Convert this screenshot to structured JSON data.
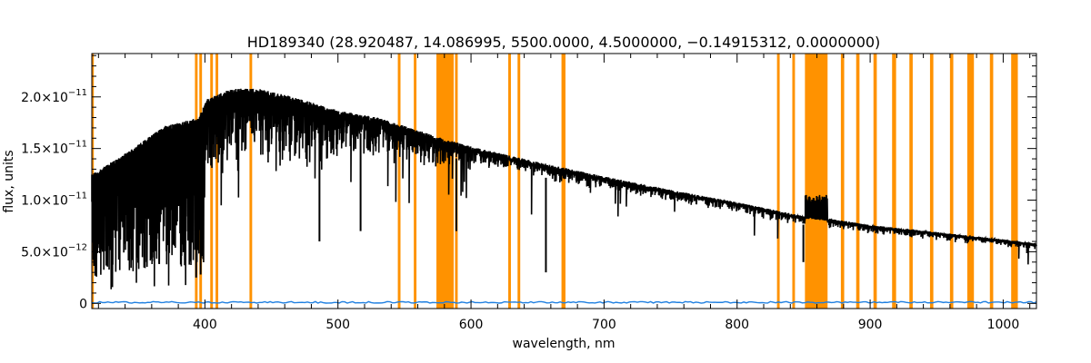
{
  "chart_data": {
    "type": "line",
    "title": "HD189340    (28.920487, 14.086995, 5500.0000, 4.5000000, −0.14915312, 0.0000000)",
    "xlabel": "wavelength, nm",
    "ylabel": "flux, units",
    "xlim": [
      315,
      1025
    ],
    "ylim": [
      -5e-13,
      2.42e-11
    ],
    "xticks": [
      400,
      500,
      600,
      700,
      800,
      900,
      1000
    ],
    "xtick_labels": [
      "400",
      "500",
      "600",
      "700",
      "800",
      "900",
      "1000"
    ],
    "yticks": [
      0,
      5e-12,
      1e-11,
      1.5e-11,
      2e-11
    ],
    "ytick_labels": [
      {
        "mant": "0",
        "exp": ""
      },
      {
        "mant": "5.0×10",
        "exp": "−12"
      },
      {
        "mant": "1.0×10",
        "exp": "−11"
      },
      {
        "mant": "1.5×10",
        "exp": "−11"
      },
      {
        "mant": "2.0×10",
        "exp": "−11"
      }
    ],
    "series": [
      {
        "color": "#000000",
        "envelope_top": [
          [
            315,
            1.25e-11
          ],
          [
            340,
            1.45e-11
          ],
          [
            370,
            1.72e-11
          ],
          [
            395,
            1.8e-11
          ],
          [
            402,
            1.98e-11
          ],
          [
            420,
            2.08e-11
          ],
          [
            440,
            2.08e-11
          ],
          [
            460,
            2.02e-11
          ],
          [
            480,
            1.95e-11
          ],
          [
            500,
            1.87e-11
          ],
          [
            530,
            1.8e-11
          ],
          [
            550,
            1.72e-11
          ],
          [
            578,
            1.6e-11
          ],
          [
            600,
            1.52e-11
          ],
          [
            650,
            1.37e-11
          ],
          [
            700,
            1.23e-11
          ],
          [
            750,
            1.1e-11
          ],
          [
            800,
            9.8e-12
          ],
          [
            848,
            8.5e-12
          ],
          [
            870,
            8.2e-12
          ],
          [
            900,
            7.6e-12
          ],
          [
            950,
            6.9e-12
          ],
          [
            1000,
            6.2e-12
          ],
          [
            1025,
            5.8e-12
          ]
        ],
        "absorption_lines": [
          {
            "x": 393.4,
            "y": 2.5e-12
          },
          {
            "x": 396.8,
            "y": 2.8e-12
          },
          {
            "x": 486.1,
            "y": 6e-12
          },
          {
            "x": 517,
            "y": 7e-12
          },
          {
            "x": 589,
            "y": 7e-12
          },
          {
            "x": 656.3,
            "y": 3e-12
          },
          {
            "x": 849.8,
            "y": 4e-12
          }
        ]
      },
      {
        "color": "#1e7fe0",
        "description_values": [
          [
            315,
            1e-13
          ],
          [
            1025,
            1e-13
          ]
        ]
      }
    ],
    "masked_regions": {
      "color": "#ff9200",
      "bands": [
        [
          315,
          316.5
        ],
        [
          392.5,
          394.5
        ],
        [
          395.8,
          397.8
        ],
        [
          404,
          406
        ],
        [
          408,
          410
        ],
        [
          433.5,
          435.5
        ],
        [
          545,
          547
        ],
        [
          557,
          559
        ],
        [
          574,
          587
        ],
        [
          588,
          590
        ],
        [
          628,
          630
        ],
        [
          635,
          637
        ],
        [
          668,
          671
        ],
        [
          830,
          832
        ],
        [
          841.5,
          843.5
        ],
        [
          851,
          868
        ],
        [
          878,
          880.5
        ],
        [
          889.5,
          892
        ],
        [
          902.5,
          905
        ],
        [
          916.5,
          919.5
        ],
        [
          929.5,
          932
        ],
        [
          945,
          947.5
        ],
        [
          960,
          962.5
        ],
        [
          973,
          978
        ],
        [
          990,
          992.5
        ],
        [
          1006,
          1011
        ]
      ]
    }
  }
}
